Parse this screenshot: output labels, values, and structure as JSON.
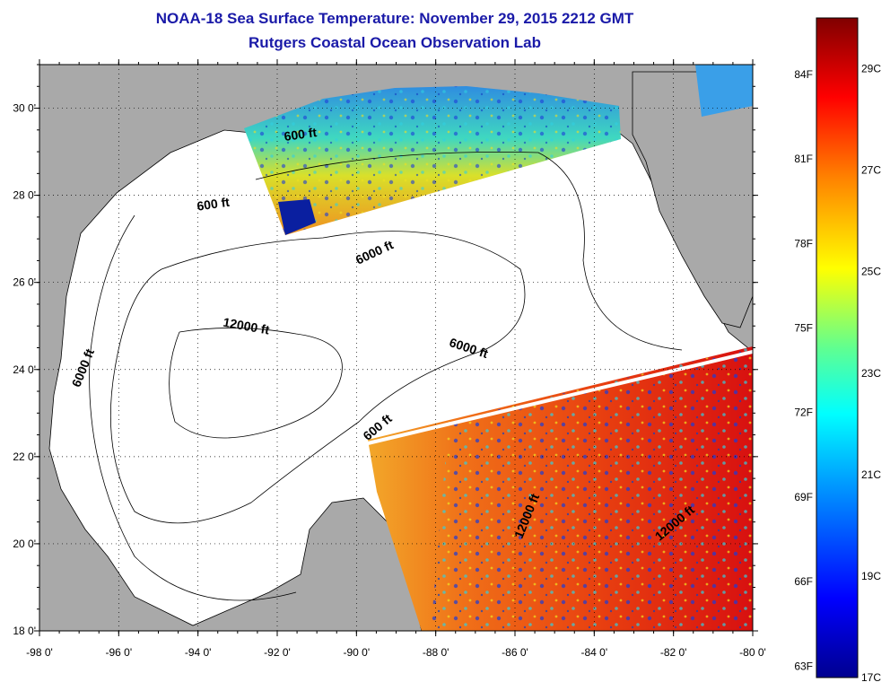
{
  "title": "NOAA-18 Sea Surface Temperature:  November 29, 2015 2212 GMT",
  "subtitle": "Rutgers Coastal Ocean Observation Lab",
  "axes": {
    "lon_range": [
      -98,
      -80
    ],
    "lat_range": [
      18,
      31
    ],
    "lon_ticks": [
      "-98 0'",
      "-96 0'",
      "-94 0'",
      "-92 0'",
      "-90 0'",
      "-88 0'",
      "-86 0'",
      "-84 0'",
      "-82 0'",
      "-80 0'"
    ],
    "lon_values": [
      -98,
      -96,
      -94,
      -92,
      -90,
      -88,
      -86,
      -84,
      -82,
      -80
    ],
    "lat_ticks": [
      "18 0'",
      "20 0'",
      "22 0'",
      "24 0'",
      "26 0'",
      "28 0'",
      "30 0'"
    ],
    "lat_values": [
      18,
      20,
      22,
      24,
      26,
      28,
      30
    ],
    "grid": "dotted"
  },
  "contour_labels": [
    {
      "text": "600 ft",
      "lon": -91.4,
      "lat": 29.3,
      "angle": -8
    },
    {
      "text": "600 ft",
      "lon": -93.6,
      "lat": 27.7,
      "angle": -8
    },
    {
      "text": "6000 ft",
      "lon": -89.5,
      "lat": 26.6,
      "angle": -25
    },
    {
      "text": "6000 ft",
      "lon": -96.8,
      "lat": 24.0,
      "angle": -68
    },
    {
      "text": "12000 ft",
      "lon": -92.8,
      "lat": 24.9,
      "angle": 10
    },
    {
      "text": "6000 ft",
      "lon": -87.2,
      "lat": 24.4,
      "angle": 18
    },
    {
      "text": "600 ft",
      "lon": -89.4,
      "lat": 22.6,
      "angle": -40
    },
    {
      "text": "12000 ft",
      "lon": -85.6,
      "lat": 20.6,
      "angle": -68
    },
    {
      "text": "12000 ft",
      "lon": -81.9,
      "lat": 20.4,
      "angle": -40
    }
  ],
  "colorbar": {
    "min_c": 17,
    "max_c": 30,
    "celsius_labels": [
      "29C",
      "27C",
      "25C",
      "23C",
      "21C",
      "19C",
      "17C"
    ],
    "celsius_values": [
      29,
      27,
      25,
      23,
      21,
      19,
      17
    ],
    "fahrenheit_labels": [
      "84F",
      "81F",
      "78F",
      "75F",
      "72F",
      "69F",
      "66F",
      "63F"
    ],
    "fahrenheit_values": [
      84,
      81,
      78,
      75,
      72,
      69,
      66,
      63
    ]
  },
  "colors": {
    "land": "#a9a9a9",
    "water_nodata": "#ffffff",
    "title": "#1a1aa8"
  }
}
